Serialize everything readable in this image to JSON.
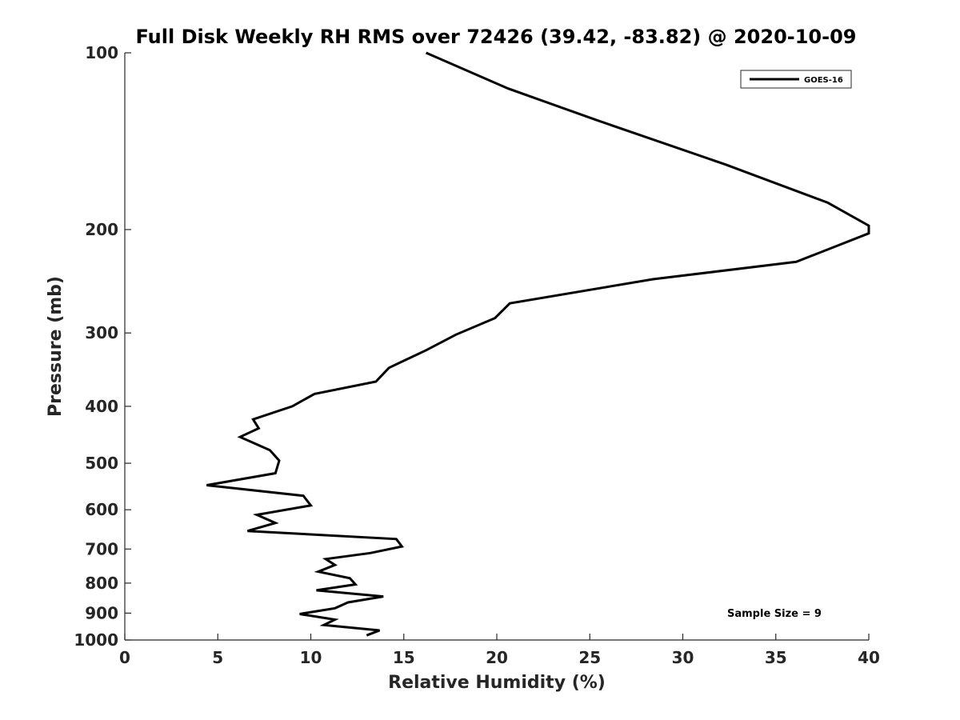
{
  "chart_data": {
    "type": "line",
    "title": "Full Disk Weekly RH RMS over 72426 (39.42, -83.82) @ 2020-10-09",
    "xlabel": "Relative Humidity (%)",
    "ylabel": "Pressure (mb)",
    "xlim": [
      0,
      40
    ],
    "ylim": [
      100,
      1000
    ],
    "y_scale": "log",
    "y_reversed": true,
    "x_ticks": [
      0,
      5,
      10,
      15,
      20,
      25,
      30,
      35,
      40
    ],
    "y_ticks": [
      100,
      200,
      300,
      400,
      500,
      600,
      700,
      800,
      900,
      1000
    ],
    "grid": false,
    "legend": {
      "placement": "top-right",
      "entries": [
        "GOES-16"
      ]
    },
    "annotation": "Sample Size = 9",
    "series": [
      {
        "name": "GOES-16",
        "color": "#000000",
        "x": [
          16.2,
          20.6,
          25.3,
          32.3,
          37.8,
          40.0,
          40.0,
          36.1,
          28.4,
          20.7,
          19.9,
          17.8,
          16.2,
          14.2,
          13.5,
          10.2,
          9.0,
          6.9,
          7.2,
          6.2,
          7.8,
          8.3,
          8.1,
          4.4,
          9.6,
          10.0,
          7.1,
          8.1,
          6.6,
          14.6,
          14.9,
          13.2,
          10.8,
          11.3,
          10.4,
          12.1,
          12.4,
          10.3,
          13.9,
          12.0,
          11.3,
          9.4,
          11.3,
          10.7,
          13.7,
          13.0
        ],
        "y": [
          100,
          115,
          130,
          155,
          180,
          197,
          203,
          227,
          243,
          267,
          283,
          302,
          321,
          344,
          363,
          381,
          400,
          421,
          436,
          451,
          475,
          495,
          520,
          545,
          568,
          590,
          612,
          632,
          652,
          673,
          693,
          711,
          728,
          745,
          765,
          785,
          804,
          823,
          843,
          863,
          883,
          903,
          923,
          943,
          963,
          982
        ]
      }
    ]
  }
}
